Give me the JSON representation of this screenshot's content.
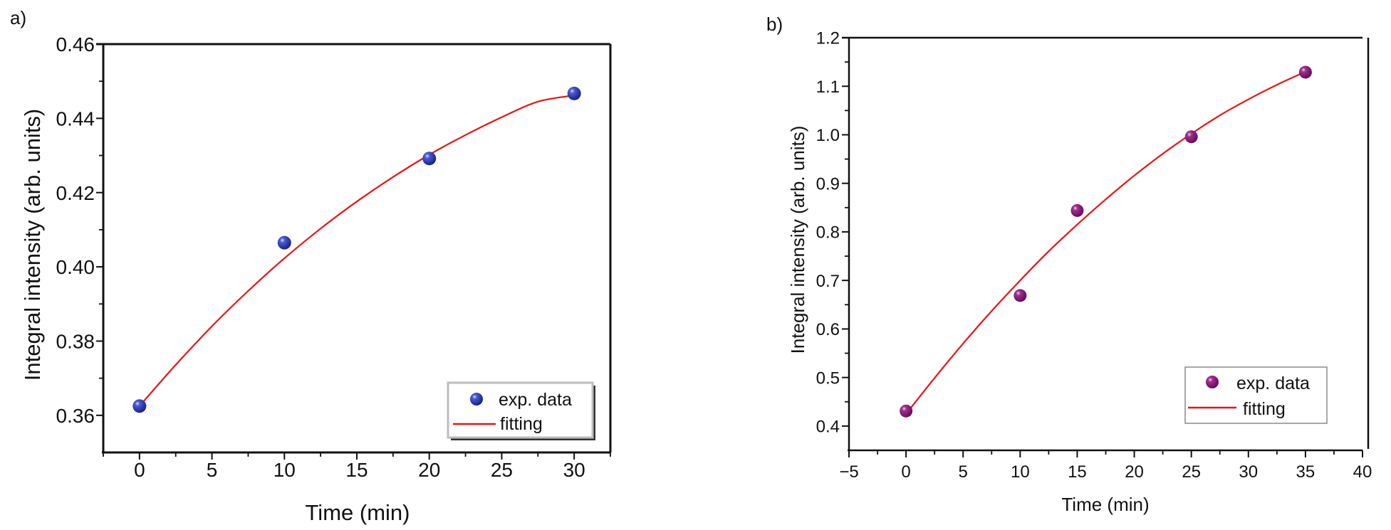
{
  "chart_data": [
    {
      "type": "scatter",
      "panel_label": "a)",
      "title": "",
      "xlabel": "Time (min)",
      "ylabel": "Integral intensity (arb. units)",
      "xlim": [
        -2.5,
        32.5
      ],
      "ylim": [
        0.35,
        0.46
      ],
      "xticks": [
        0,
        5,
        10,
        15,
        20,
        25,
        30
      ],
      "xtick_labels": [
        "0",
        "5",
        "10",
        "15",
        "20",
        "25",
        "30"
      ],
      "yticks": [
        0.36,
        0.38,
        0.4,
        0.42,
        0.44,
        0.46
      ],
      "ytick_labels": [
        "0.36",
        "0.38",
        "0.40",
        "0.42",
        "0.44",
        "0.46"
      ],
      "grid": false,
      "legend_position": "bottom-right",
      "legend_style": "shadow",
      "series": [
        {
          "name": "exp. data",
          "kind": "markers",
          "color": "#1b2a9e",
          "x": [
            0,
            10,
            20,
            30
          ],
          "y": [
            0.3625,
            0.4065,
            0.4292,
            0.4467
          ]
        },
        {
          "name": "fitting",
          "kind": "line",
          "color": "#ee1111",
          "x": [
            0,
            2.5,
            5,
            7.5,
            10,
            12.5,
            15,
            17.5,
            20,
            22.5,
            25,
            27.5,
            30
          ],
          "y": [
            0.3625,
            0.3736,
            0.384,
            0.3935,
            0.4023,
            0.4103,
            0.4176,
            0.4242,
            0.4302,
            0.4355,
            0.4403,
            0.4445,
            0.4462
          ]
        }
      ]
    },
    {
      "type": "scatter",
      "panel_label": "b)",
      "title": "",
      "xlabel": "Time (min)",
      "ylabel": "Integral intensity (arb. units)",
      "xlim": [
        -5,
        40
      ],
      "ylim": [
        0.35,
        1.2
      ],
      "xticks": [
        -5,
        0,
        5,
        10,
        15,
        20,
        25,
        30,
        35,
        40
      ],
      "xtick_labels": [
        "−5",
        "0",
        "5",
        "10",
        "15",
        "20",
        "25",
        "30",
        "35",
        "40"
      ],
      "yticks": [
        0.4,
        0.5,
        0.6,
        0.7,
        0.8,
        0.9,
        1.0,
        1.1,
        1.2
      ],
      "ytick_labels": [
        "0.4",
        "0.5",
        "0.6",
        "0.7",
        "0.8",
        "0.9",
        "1.0",
        "1.1",
        "1.2"
      ],
      "grid": false,
      "legend_position": "bottom-right",
      "legend_style": "plain",
      "series": [
        {
          "name": "exp. data",
          "kind": "markers",
          "color": "#7a0d6e",
          "x": [
            0,
            10,
            15,
            25,
            35
          ],
          "y": [
            0.431,
            0.669,
            0.844,
            0.996,
            1.129
          ]
        },
        {
          "name": "fitting",
          "kind": "line",
          "color": "#ee1111",
          "x": [
            0,
            2.5,
            5,
            7.5,
            10,
            12.5,
            15,
            17.5,
            20,
            22.5,
            25,
            27.5,
            30,
            32.5,
            35
          ],
          "y": [
            0.425,
            0.499,
            0.57,
            0.637,
            0.7,
            0.76,
            0.815,
            0.867,
            0.916,
            0.961,
            1.002,
            1.04,
            1.073,
            1.103,
            1.13
          ]
        }
      ]
    }
  ]
}
